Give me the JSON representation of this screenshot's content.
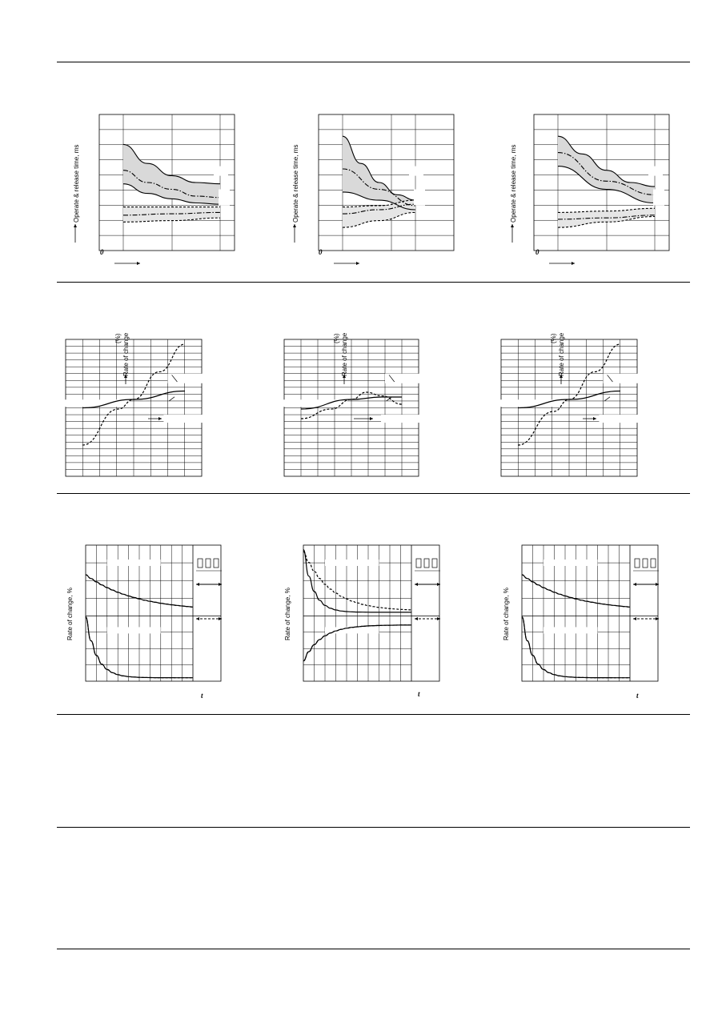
{
  "page": {
    "section_dividers": [
      "row-1-top",
      "row-2-top",
      "row-3-top",
      "row-4-top",
      "row-5-top",
      "row-6-top"
    ]
  },
  "row1": {
    "ylabel": "Operate & release time, ms",
    "charts": [
      {
        "type": "line",
        "zero_label": "0",
        "band_color": "#d9d9d9",
        "series": [
          {
            "name": "",
            "style": "solid",
            "values": [
              [
                0,
                0.78
              ],
              [
                0.25,
                0.64
              ],
              [
                0.5,
                0.55
              ],
              [
                0.75,
                0.5
              ],
              [
                1,
                0.49
              ]
            ]
          },
          {
            "name": "",
            "style": "dashdot",
            "values": [
              [
                0,
                0.59
              ],
              [
                0.25,
                0.5
              ],
              [
                0.5,
                0.45
              ],
              [
                0.75,
                0.4
              ],
              [
                1,
                0.39
              ]
            ]
          },
          {
            "name": "",
            "style": "solid",
            "values": [
              [
                0,
                0.49
              ],
              [
                0.25,
                0.42
              ],
              [
                0.5,
                0.38
              ],
              [
                0.75,
                0.35
              ],
              [
                1,
                0.34
              ]
            ]
          },
          {
            "name": "",
            "style": "dashed",
            "values": [
              [
                0,
                0.32
              ],
              [
                0.5,
                0.32
              ],
              [
                1,
                0.32
              ]
            ]
          },
          {
            "name": "",
            "style": "dashdot",
            "values": [
              [
                0,
                0.26
              ],
              [
                0.5,
                0.27
              ],
              [
                1,
                0.28
              ]
            ]
          },
          {
            "name": "",
            "style": "dashed",
            "values": [
              [
                0,
                0.21
              ],
              [
                0.5,
                0.22
              ],
              [
                1,
                0.24
              ]
            ]
          }
        ]
      },
      {
        "type": "line",
        "zero_label": "0",
        "band_color": "#d9d9d9",
        "series": [
          {
            "name": "",
            "style": "solid",
            "values": [
              [
                0,
                0.84
              ],
              [
                0.25,
                0.64
              ],
              [
                0.5,
                0.5
              ],
              [
                0.75,
                0.41
              ],
              [
                1,
                0.37
              ]
            ]
          },
          {
            "name": "",
            "style": "dashdot",
            "values": [
              [
                0,
                0.6
              ],
              [
                0.5,
                0.45
              ],
              [
                1,
                0.33
              ]
            ]
          },
          {
            "name": "",
            "style": "solid",
            "values": [
              [
                0,
                0.43
              ],
              [
                0.5,
                0.37
              ],
              [
                1,
                0.3
              ]
            ]
          },
          {
            "name": "",
            "style": "dashed",
            "values": [
              [
                0,
                0.32
              ],
              [
                0.5,
                0.33
              ],
              [
                1,
                0.37
              ]
            ]
          },
          {
            "name": "",
            "style": "dashdot",
            "values": [
              [
                0,
                0.27
              ],
              [
                0.5,
                0.3
              ],
              [
                1,
                0.34
              ]
            ]
          },
          {
            "name": "",
            "style": "dashed",
            "values": [
              [
                0,
                0.17
              ],
              [
                0.5,
                0.22
              ],
              [
                1,
                0.28
              ]
            ]
          }
        ]
      },
      {
        "type": "line",
        "zero_label": "0",
        "band_color": "#d9d9d9",
        "series": [
          {
            "name": "",
            "style": "solid",
            "values": [
              [
                0,
                0.84
              ],
              [
                0.25,
                0.71
              ],
              [
                0.5,
                0.59
              ],
              [
                0.75,
                0.5
              ],
              [
                1,
                0.47
              ]
            ]
          },
          {
            "name": "",
            "style": "dashdot",
            "values": [
              [
                0,
                0.72
              ],
              [
                0.5,
                0.51
              ],
              [
                1,
                0.41
              ]
            ]
          },
          {
            "name": "",
            "style": "solid",
            "values": [
              [
                0,
                0.62
              ],
              [
                0.5,
                0.45
              ],
              [
                1,
                0.35
              ]
            ]
          },
          {
            "name": "",
            "style": "dashed",
            "values": [
              [
                0,
                0.28
              ],
              [
                0.5,
                0.29
              ],
              [
                1,
                0.31
              ]
            ]
          },
          {
            "name": "",
            "style": "dashdot",
            "values": [
              [
                0,
                0.23
              ],
              [
                0.5,
                0.24
              ],
              [
                1,
                0.26
              ]
            ]
          },
          {
            "name": "",
            "style": "dashed",
            "values": [
              [
                0,
                0.17
              ],
              [
                0.5,
                0.21
              ],
              [
                1,
                0.25
              ]
            ]
          }
        ]
      }
    ]
  },
  "row2": {
    "unit_label": "(%)",
    "ylabel": "Rate of change",
    "charts": [
      {
        "type": "line",
        "series": [
          {
            "name": "",
            "style": "dashed",
            "values": [
              [
                0,
                0.12
              ],
              [
                0.35,
                0.42
              ],
              [
                0.5,
                0.5
              ],
              [
                0.75,
                0.73
              ],
              [
                1,
                0.96
              ]
            ]
          },
          {
            "name": "",
            "style": "solid",
            "values": [
              [
                0,
                0.43
              ],
              [
                0.5,
                0.5
              ],
              [
                1,
                0.57
              ]
            ]
          }
        ]
      },
      {
        "type": "line",
        "series": [
          {
            "name": "",
            "style": "dashed",
            "values": [
              [
                0,
                0.34
              ],
              [
                0.3,
                0.42
              ],
              [
                0.5,
                0.5
              ],
              [
                0.65,
                0.56
              ],
              [
                0.8,
                0.53
              ],
              [
                1,
                0.46
              ]
            ]
          },
          {
            "name": "",
            "style": "solid",
            "values": [
              [
                0,
                0.42
              ],
              [
                0.5,
                0.5
              ],
              [
                0.8,
                0.52
              ],
              [
                1,
                0.52
              ]
            ]
          }
        ]
      },
      {
        "type": "line",
        "series": [
          {
            "name": "",
            "style": "dashed",
            "values": [
              [
                0,
                0.12
              ],
              [
                0.35,
                0.4
              ],
              [
                0.5,
                0.5
              ],
              [
                0.75,
                0.73
              ],
              [
                1,
                0.96
              ]
            ]
          },
          {
            "name": "",
            "style": "solid",
            "values": [
              [
                0,
                0.43
              ],
              [
                0.5,
                0.5
              ],
              [
                1,
                0.57
              ]
            ]
          }
        ]
      }
    ]
  },
  "row3": {
    "ylabel": "Rate of change, %",
    "x_symbol": "t",
    "charts": [
      {
        "type": "line",
        "top": [
          {
            "style": "solid",
            "decay": "slow"
          },
          {
            "style": "dashed",
            "decay": "slow"
          }
        ],
        "bottom": [
          {
            "style": "solid",
            "decay": "fast"
          },
          {
            "style": "dashed",
            "decay": "fast"
          }
        ]
      },
      {
        "type": "line",
        "top": [
          {
            "style": "dashed",
            "decay": "medium"
          },
          {
            "style": "solid",
            "decay": "fast"
          }
        ],
        "bottom": [
          {
            "style": "solid",
            "decay": "rise"
          },
          {
            "style": "dashed",
            "decay": "rise"
          }
        ]
      },
      {
        "type": "line",
        "top": [
          {
            "style": "solid",
            "decay": "slow"
          },
          {
            "style": "dashed",
            "decay": "slow"
          }
        ],
        "bottom": [
          {
            "style": "solid",
            "decay": "fast"
          },
          {
            "style": "dashed",
            "decay": "fast"
          }
        ]
      }
    ]
  }
}
